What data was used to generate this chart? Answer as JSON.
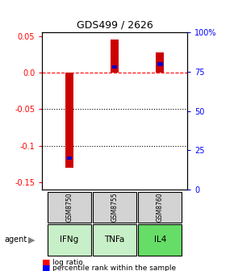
{
  "title": "GDS499 / 2626",
  "samples": [
    "GSM8750",
    "GSM8755",
    "GSM8760"
  ],
  "agents": [
    "IFNg",
    "TNFa",
    "IL4"
  ],
  "agent_colors": [
    "#c8f0c8",
    "#c8f0c8",
    "#66dd66"
  ],
  "log_ratios": [
    -0.13,
    0.045,
    0.028
  ],
  "percentile_ranks": [
    20,
    78,
    80
  ],
  "bar_color": "#cc0000",
  "pct_color": "#0000cc",
  "ylim_left": [
    -0.16,
    0.055
  ],
  "ylim_right": [
    0,
    100
  ],
  "left_ticks": [
    0.05,
    0.0,
    -0.05,
    -0.1,
    -0.15
  ],
  "right_ticks": [
    100,
    75,
    50,
    25,
    0
  ],
  "bar_width": 0.18,
  "pct_bar_width": 0.12,
  "pct_bar_height": 0.005,
  "background_color": "#ffffff"
}
